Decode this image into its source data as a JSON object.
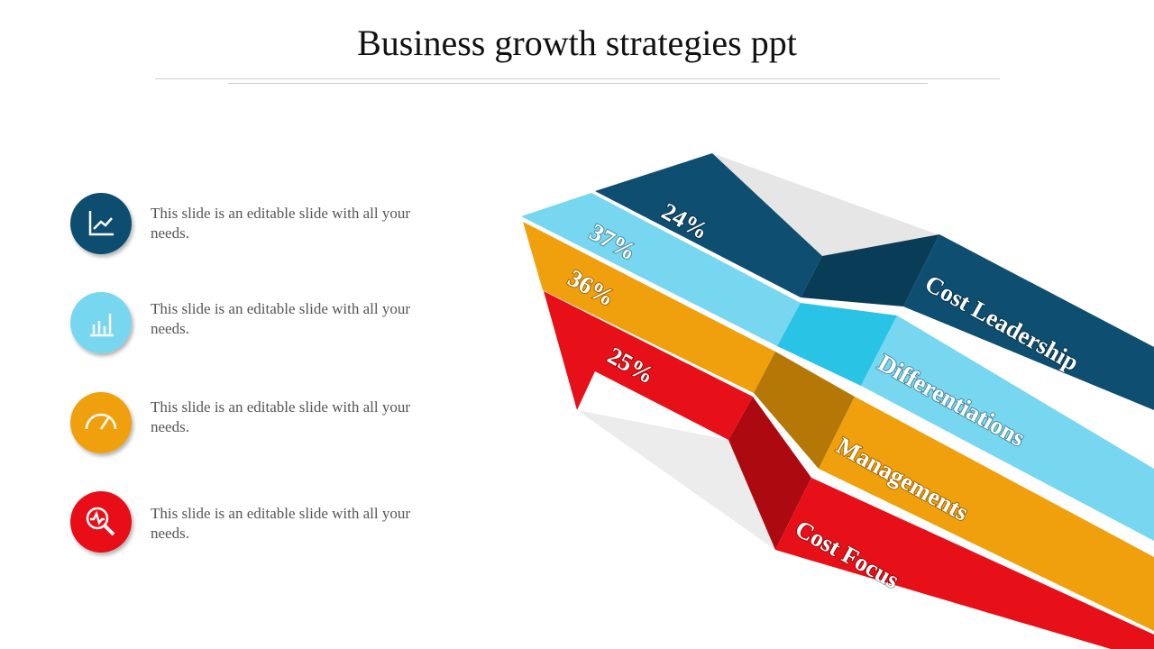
{
  "title": "Business growth strategies ppt",
  "items": [
    {
      "text": "This slide is an editable slide with all your needs."
    },
    {
      "text": "This slide is an editable slide with all your needs."
    },
    {
      "text": "This slide is an editable slide with all your needs."
    },
    {
      "text": "This slide is an editable slide with all your needs."
    }
  ],
  "ribbons": [
    {
      "label": "Cost Leadership",
      "percent": "24%"
    },
    {
      "label": "Differentiations",
      "percent": "37%"
    },
    {
      "label": "Managements",
      "percent": "36%"
    },
    {
      "label": "Cost Focus",
      "percent": "25%"
    }
  ]
}
